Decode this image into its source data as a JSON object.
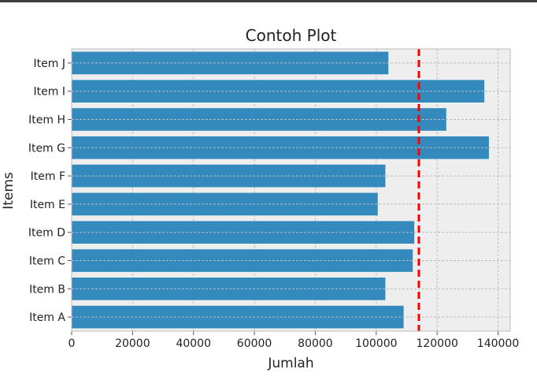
{
  "chart_data": {
    "type": "bar",
    "orientation": "horizontal",
    "title": "Contoh Plot",
    "xlabel": "Jumlah",
    "ylabel": "Items",
    "categories": [
      "Item A",
      "Item B",
      "Item C",
      "Item D",
      "Item E",
      "Item F",
      "Item G",
      "Item H",
      "Item I",
      "Item J"
    ],
    "values": [
      109000,
      103000,
      112000,
      112500,
      100500,
      103000,
      137000,
      123000,
      135500,
      104000
    ],
    "xlim": [
      0,
      144000
    ],
    "xticks": [
      0,
      20000,
      40000,
      60000,
      80000,
      100000,
      120000,
      140000
    ],
    "xtick_labels": [
      "0",
      "20000",
      "40000",
      "60000",
      "80000",
      "100000",
      "120000",
      "140000"
    ],
    "reference_line": {
      "value": 114000,
      "style": "dashed",
      "color": "#ff0000"
    },
    "grid": true,
    "bar_color": "#348abd",
    "background_color": "#eeeeee",
    "grid_color": "#bcbcbc"
  }
}
